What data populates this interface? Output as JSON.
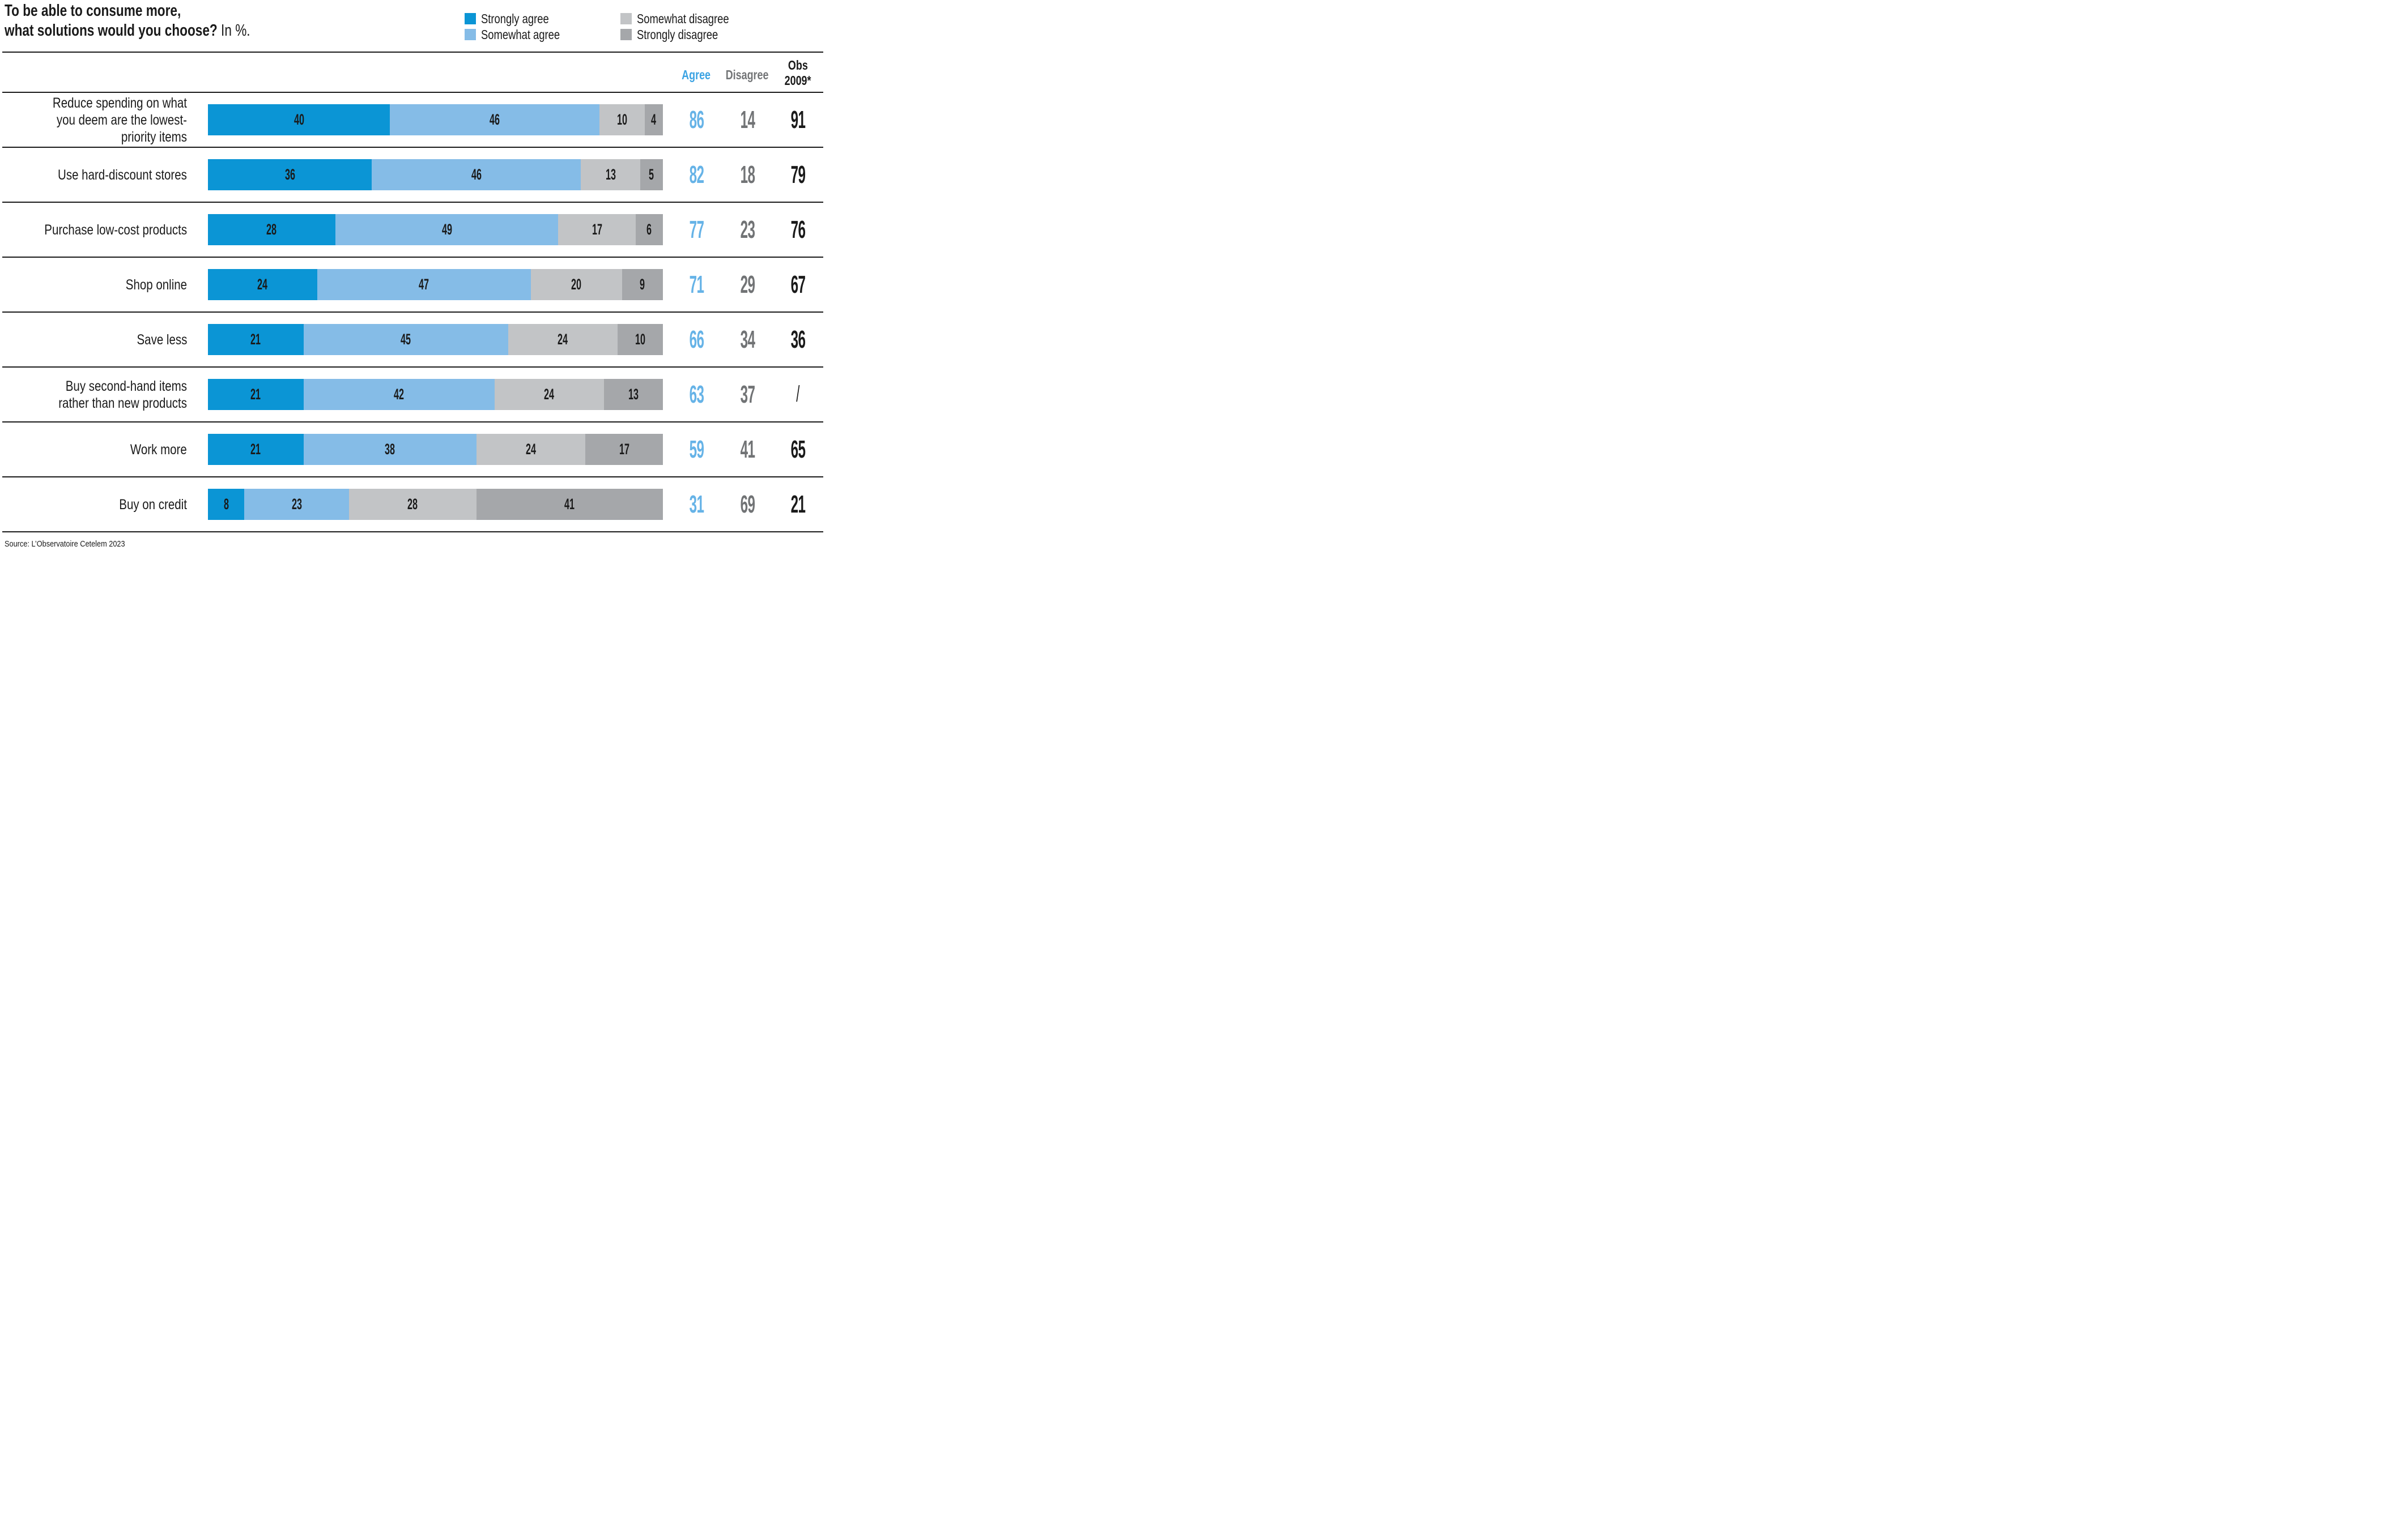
{
  "title": {
    "line1": "To be able to consume more,",
    "line2_bold": "what solutions would you choose?",
    "line2_suffix": "In %."
  },
  "legend": {
    "items": [
      {
        "label": "Strongly agree",
        "color": "#0B95D5"
      },
      {
        "label": "Somewhat agree",
        "color": "#85BCE7"
      },
      {
        "label": "Somewhat disagree",
        "color": "#C2C4C6"
      },
      {
        "label": "Strongly disagree",
        "color": "#A5A7AA"
      }
    ]
  },
  "columns": {
    "agree": "Agree",
    "disagree": "Disagree",
    "obs_line1": "Obs",
    "obs_line2": "2009*"
  },
  "source": "Source: L’Observatoire Cetelem 2023",
  "colors": {
    "strongly_agree": "#0B95D5",
    "somewhat_agree": "#85BCE7",
    "somewhat_disagree": "#C2C4C6",
    "strongly_disagree": "#A5A7AA",
    "agree_header": "#3BA3E3",
    "agree_value": "#66B3E7",
    "disagree_text": "#717375",
    "ink": "#1A1A1A"
  },
  "chart_data": {
    "type": "bar",
    "orientation": "horizontal-stacked",
    "unit": "%",
    "title": "To be able to consume more, what solutions would you choose? In %.",
    "legend_position": "top-right",
    "xlim": [
      0,
      100
    ],
    "series_names": [
      "Strongly agree",
      "Somewhat agree",
      "Somewhat disagree",
      "Strongly disagree"
    ],
    "extra_columns": [
      "Agree",
      "Disagree",
      "Obs 2009*"
    ],
    "categories": [
      "Reduce spending on what you deem are the lowest-priority items",
      "Use hard-discount stores",
      "Purchase low-cost products",
      "Shop online",
      "Save less",
      "Buy second-hand items rather than new products",
      "Work more",
      "Buy on credit"
    ],
    "rows": [
      {
        "label": "Reduce spending on what you deem are the lowest-priority items",
        "values": [
          40,
          46,
          10,
          4
        ],
        "agree": 86,
        "disagree": 14,
        "obs_2009": "91"
      },
      {
        "label": "Use hard-discount stores",
        "values": [
          36,
          46,
          13,
          5
        ],
        "agree": 82,
        "disagree": 18,
        "obs_2009": "79"
      },
      {
        "label": "Purchase low-cost products",
        "values": [
          28,
          49,
          17,
          6
        ],
        "agree": 77,
        "disagree": 23,
        "obs_2009": "76"
      },
      {
        "label": "Shop online",
        "values": [
          24,
          47,
          20,
          9
        ],
        "agree": 71,
        "disagree": 29,
        "obs_2009": "67"
      },
      {
        "label": "Save less",
        "values": [
          21,
          45,
          24,
          10
        ],
        "agree": 66,
        "disagree": 34,
        "obs_2009": "36"
      },
      {
        "label": "Buy second-hand items rather than new products",
        "values": [
          21,
          42,
          24,
          13
        ],
        "agree": 63,
        "disagree": 37,
        "obs_2009": "/"
      },
      {
        "label": "Work more",
        "values": [
          21,
          38,
          24,
          17
        ],
        "agree": 59,
        "disagree": 41,
        "obs_2009": "65"
      },
      {
        "label": "Buy on credit",
        "values": [
          8,
          23,
          28,
          41
        ],
        "agree": 31,
        "disagree": 69,
        "obs_2009": "21"
      }
    ],
    "source": "Source: L’Observatoire Cetelem 2023"
  }
}
